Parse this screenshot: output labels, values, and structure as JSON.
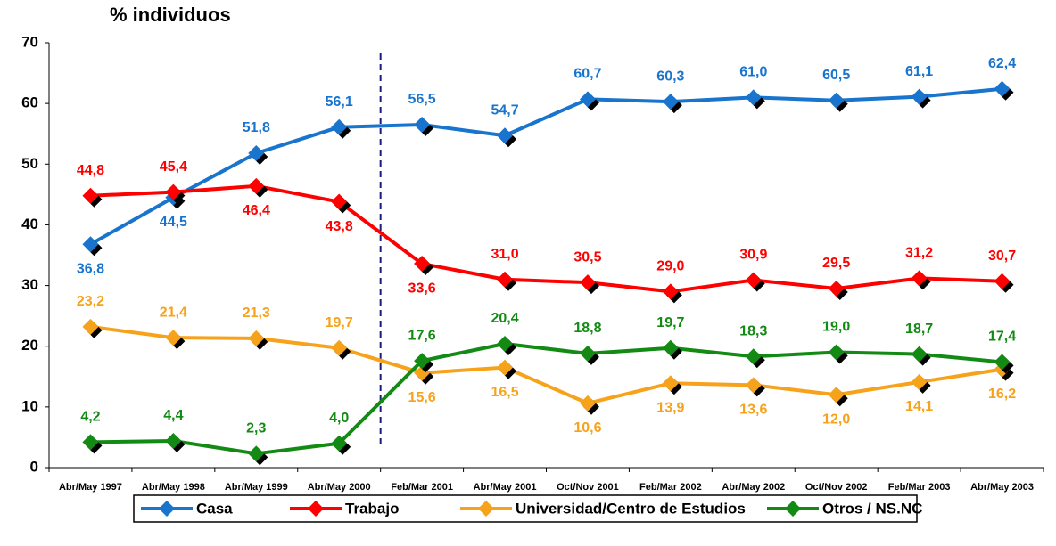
{
  "chart_data": {
    "type": "line",
    "y_axis_label": "% individuos",
    "categories": [
      "Abr/May 1997",
      "Abr/May 1998",
      "Abr/May 1999",
      "Abr/May 2000",
      "Feb/Mar 2001",
      "Abr/May 2001",
      "Oct/Nov 2001",
      "Feb/Mar 2002",
      "Abr/May 2002",
      "Oct/Nov 2002",
      "Feb/Mar 2003",
      "Abr/May 2003"
    ],
    "ylim": [
      0,
      70
    ],
    "yticks": [
      0,
      10,
      20,
      30,
      40,
      50,
      60,
      70
    ],
    "grid": false,
    "legend": "bottom",
    "series": [
      {
        "name": "Casa",
        "color": "#1874cd",
        "values": [
          36.8,
          44.5,
          51.8,
          56.1,
          56.5,
          54.7,
          60.7,
          60.3,
          61.0,
          60.5,
          61.1,
          62.4
        ],
        "value_labels": [
          "36,8",
          "44,5",
          "51,8",
          "56,1",
          "56,5",
          "54,7",
          "60,7",
          "60,3",
          "61,0",
          "60,5",
          "61,1",
          "62,4"
        ]
      },
      {
        "name": "Trabajo",
        "color": "#ff0000",
        "values": [
          44.8,
          45.4,
          46.4,
          43.8,
          33.6,
          31.0,
          30.5,
          29.0,
          30.9,
          29.5,
          31.2,
          30.7
        ],
        "value_labels": [
          "44,8",
          "45,4",
          "46,4",
          "43,8",
          "33,6",
          "31,0",
          "30,5",
          "29,0",
          "30,9",
          "29,5",
          "31,2",
          "30,7"
        ]
      },
      {
        "name": "Universidad/Centro de Estudios",
        "color": "#f7a21b",
        "values": [
          23.2,
          21.4,
          21.3,
          19.7,
          15.6,
          16.5,
          10.6,
          13.9,
          13.6,
          12.0,
          14.1,
          16.2
        ],
        "value_labels": [
          "23,2",
          "21,4",
          "21,3",
          "19,7",
          "15,6",
          "16,5",
          "10,6",
          "13,9",
          "13,6",
          "12,0",
          "14,1",
          "16,2"
        ]
      },
      {
        "name": "Otros / NS.NC",
        "color": "#138a13",
        "values": [
          4.2,
          4.4,
          2.3,
          4.0,
          17.6,
          20.4,
          18.8,
          19.7,
          18.3,
          19.0,
          18.7,
          17.4
        ],
        "value_labels": [
          "4,2",
          "4,4",
          "2,3",
          "4,0",
          "17,6",
          "20,4",
          "18,8",
          "19,7",
          "18,3",
          "19,0",
          "18,7",
          "17,4"
        ]
      }
    ]
  }
}
